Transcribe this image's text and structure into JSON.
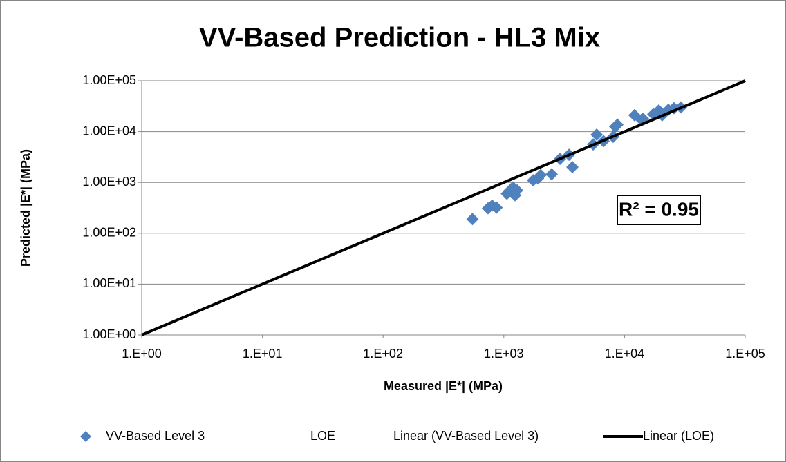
{
  "chart_data": {
    "type": "scatter",
    "title": "VV-Based Prediction - HL3 Mix",
    "x_label": "Measured |E*| (MPa)",
    "y_label": "Predicted |E*| (MPa)",
    "xscale": "log",
    "yscale": "log",
    "xlim": [
      1,
      100000
    ],
    "ylim": [
      1,
      100000
    ],
    "xticks": [
      {
        "value": 1,
        "label": "1.E+00"
      },
      {
        "value": 10,
        "label": "1.E+01"
      },
      {
        "value": 100,
        "label": "1.E+02"
      },
      {
        "value": 1000,
        "label": "1.E+03"
      },
      {
        "value": 10000,
        "label": "1.E+04"
      },
      {
        "value": 100000,
        "label": "1.E+05"
      }
    ],
    "yticks": [
      {
        "value": 1,
        "label": "1.00E+00"
      },
      {
        "value": 10,
        "label": "1.00E+01"
      },
      {
        "value": 100,
        "label": "1.00E+02"
      },
      {
        "value": 1000,
        "label": "1.00E+03"
      },
      {
        "value": 10000,
        "label": "1.00E+04"
      },
      {
        "value": 100000,
        "label": "1.00E+05"
      }
    ],
    "grid": true,
    "series": [
      {
        "name": "VV-Based Level 3",
        "type": "scatter",
        "color": "#4f81bd",
        "x": [
          550,
          740,
          800,
          870,
          1060,
          1110,
          1190,
          1290,
          1240,
          1750,
          1920,
          2020,
          2490,
          2920,
          3470,
          3700,
          5500,
          5880,
          6700,
          8050,
          8380,
          8730,
          12100,
          14200,
          17300,
          19200,
          20500,
          23100,
          25700,
          29300,
          13800
        ],
        "values": [
          190,
          310,
          350,
          320,
          600,
          680,
          800,
          700,
          560,
          1100,
          1200,
          1400,
          1450,
          2900,
          3500,
          2000,
          5600,
          8700,
          6500,
          7900,
          12500,
          13700,
          21000,
          18000,
          22000,
          26000,
          21000,
          27000,
          29000,
          30000,
          17000
        ]
      },
      {
        "name": "Linear (LOE)",
        "type": "line",
        "color": "#000000",
        "x": [
          1,
          100000
        ],
        "values": [
          1,
          100000
        ]
      }
    ],
    "legend": [
      "VV-Based Level 3",
      "LOE",
      "Linear (VV-Based Level 3)",
      "Linear (LOE)"
    ],
    "annotation": "R² = 0.95"
  }
}
